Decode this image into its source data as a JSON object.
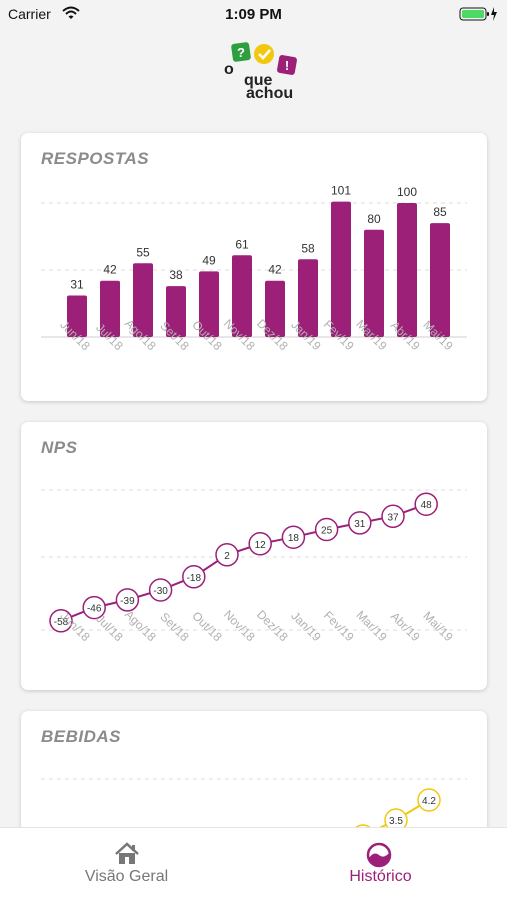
{
  "status_bar": {
    "carrier": "Carrier",
    "time": "1:09 PM"
  },
  "logo": {
    "line1": "o",
    "line2": "que",
    "line3": "achou"
  },
  "months": [
    "Jun/18",
    "Jul/18",
    "Ago/18",
    "Set/18",
    "Out/18",
    "Nov/18",
    "Dez/18",
    "Jan/19",
    "Fev/19",
    "Mar/19",
    "Abr/19",
    "Mai/19"
  ],
  "colors": {
    "primary": "#9c1f78",
    "yellow": "#f2c80f",
    "green": "#2e9e3e",
    "tab_inactive": "#777777"
  },
  "tabs": [
    {
      "label": "Visão Geral",
      "icon": "home-icon"
    },
    {
      "label": "Histórico",
      "icon": "historico-icon"
    }
  ],
  "chart_data": [
    {
      "type": "bar",
      "title": "RESPOSTAS",
      "categories": [
        "Jun/18",
        "Jul/18",
        "Ago/18",
        "Set/18",
        "Out/18",
        "Nov/18",
        "Dez/18",
        "Jan/19",
        "Fev/19",
        "Mar/19",
        "Abr/19",
        "Mai/19"
      ],
      "values": [
        31,
        42,
        55,
        38,
        49,
        61,
        42,
        58,
        101,
        80,
        100,
        85
      ],
      "ylim": [
        0,
        100
      ],
      "grid": true
    },
    {
      "type": "line",
      "title": "NPS",
      "categories": [
        "Jun/18",
        "Jul/18",
        "Ago/18",
        "Set/18",
        "Out/18",
        "Nov/18",
        "Dez/18",
        "Jan/19",
        "Fev/19",
        "Mar/19",
        "Abr/19",
        "Mai/19"
      ],
      "values": [
        -58,
        -46,
        -39,
        -30,
        -18,
        2,
        12,
        18,
        25,
        31,
        37,
        48
      ],
      "grid": true
    },
    {
      "type": "line",
      "title": "BEBIDAS",
      "values_visible": [
        3.5,
        4.2
      ],
      "grid": true
    }
  ]
}
